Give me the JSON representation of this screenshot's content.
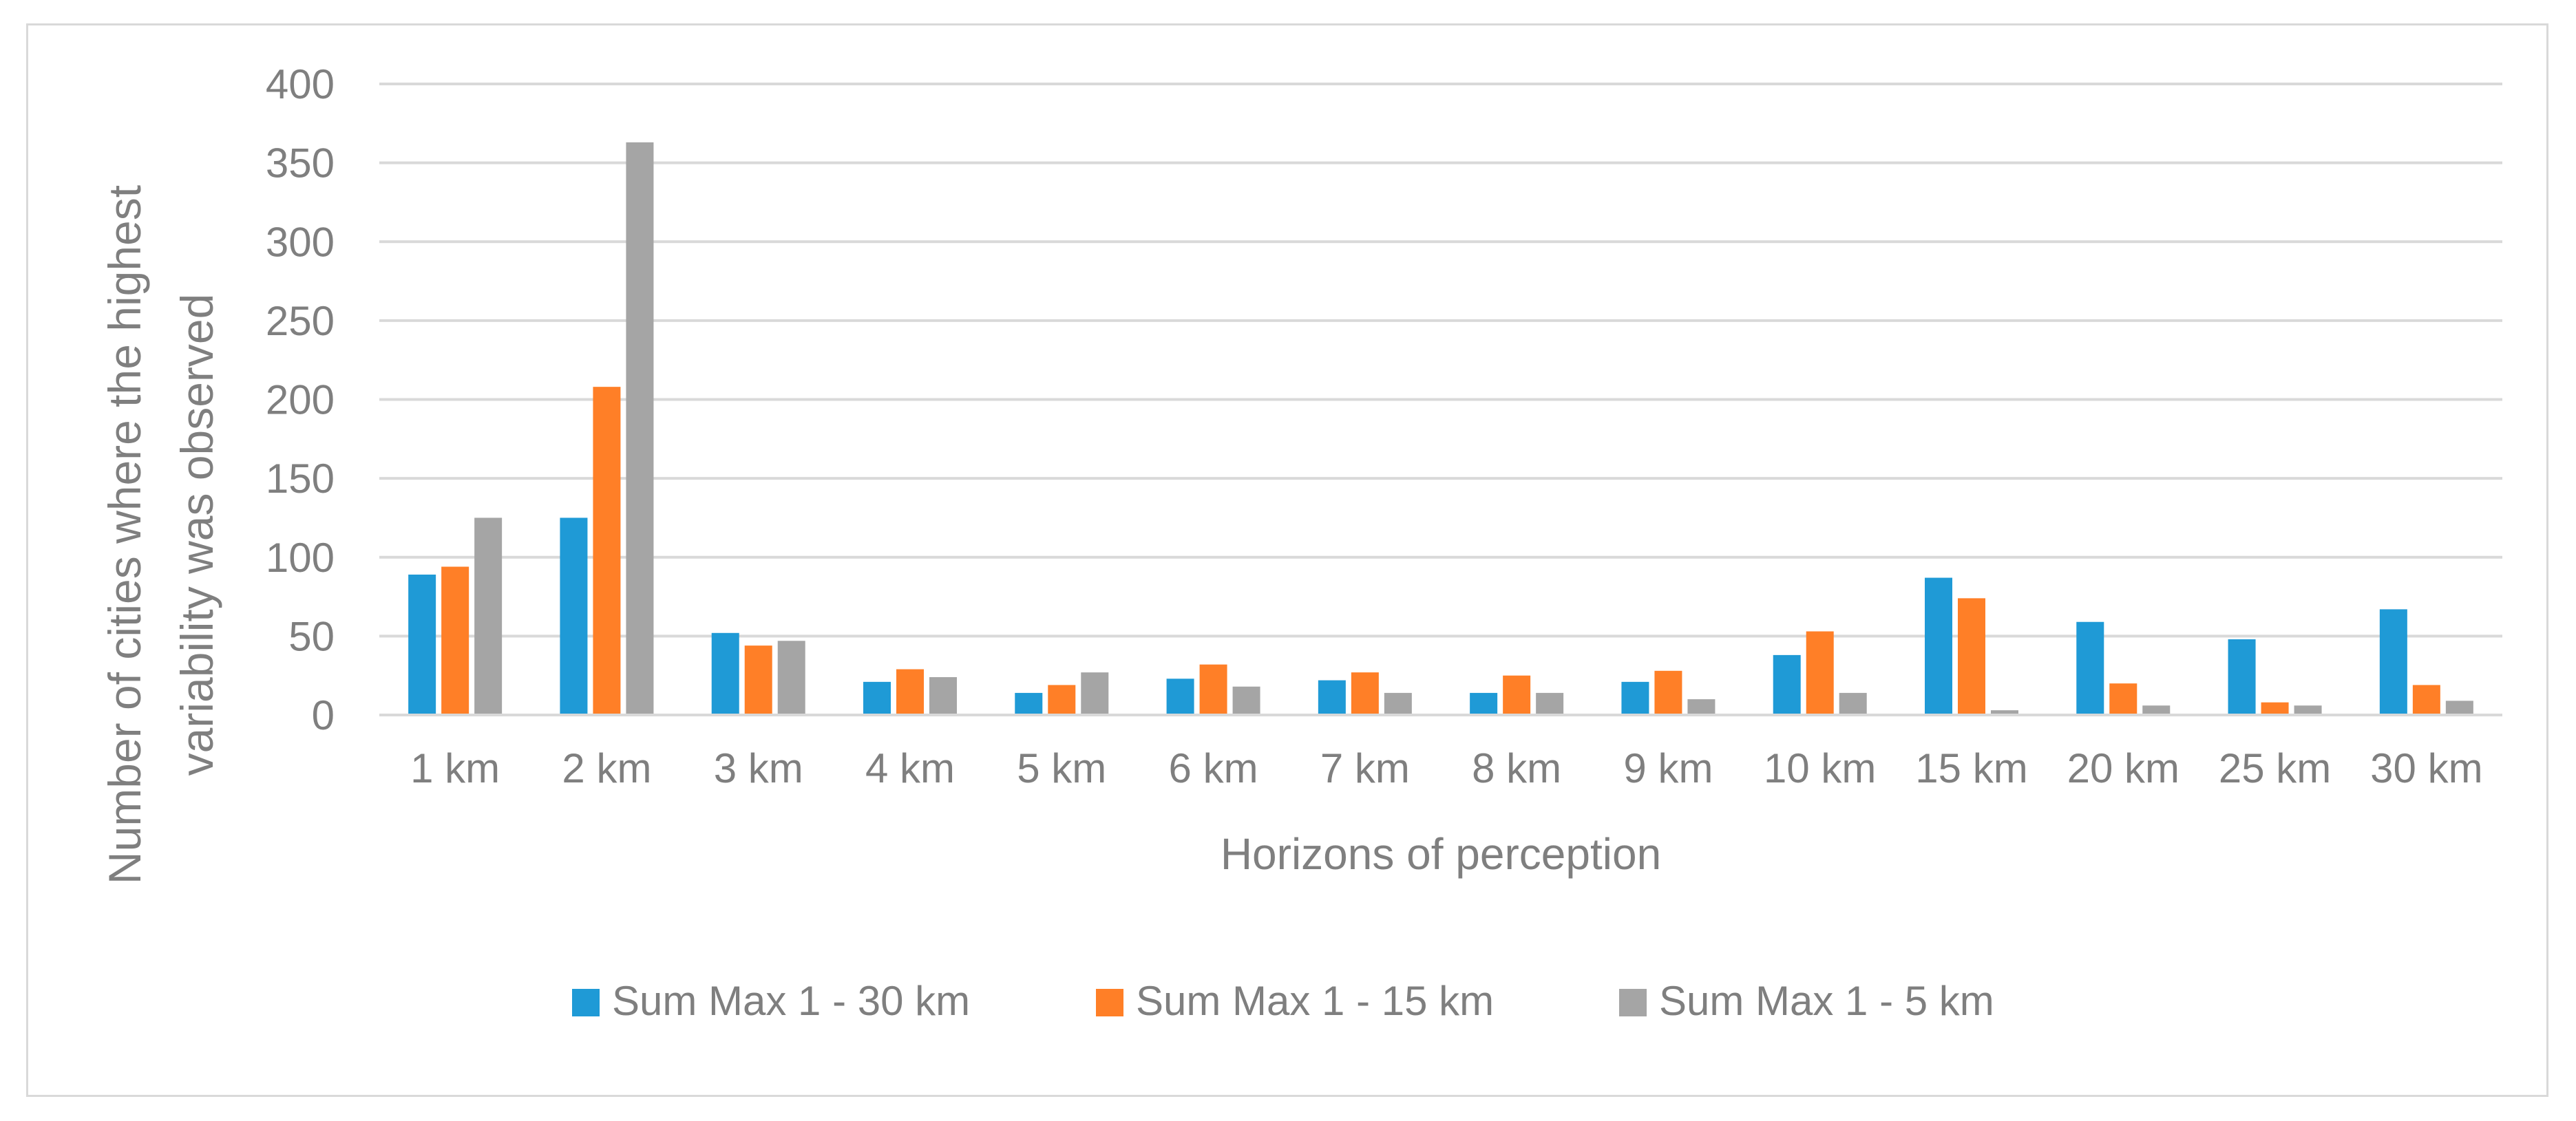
{
  "chart_data": {
    "type": "bar",
    "title": "",
    "xlabel": "Horizons of perception",
    "ylabel": "Number of cities where the highest variability was observed",
    "ylabel_lines": [
      "Number of cities where the highest",
      "variability was observed"
    ],
    "ylim": [
      0,
      400
    ],
    "yticks": [
      0,
      50,
      100,
      150,
      200,
      250,
      300,
      350,
      400
    ],
    "grid": true,
    "legend_position": "bottom",
    "categories": [
      "1 km",
      "2 km",
      "3 km",
      "4 km",
      "5 km",
      "6 km",
      "7 km",
      "8 km",
      "9 km",
      "10 km",
      "15 km",
      "20 km",
      "25 km",
      "30 km"
    ],
    "series": [
      {
        "name": "Sum Max 1 - 30 km",
        "color": "#1f9ad6",
        "values": [
          89,
          125,
          52,
          21,
          14,
          23,
          22,
          14,
          21,
          38,
          87,
          59,
          48,
          67
        ]
      },
      {
        "name": "Sum Max 1 - 15 km",
        "color": "#ff7f27",
        "values": [
          94,
          208,
          44,
          29,
          19,
          32,
          27,
          25,
          28,
          53,
          74,
          20,
          8,
          19
        ]
      },
      {
        "name": "Sum Max 1 - 5 km",
        "color": "#a5a5a5",
        "values": [
          125,
          363,
          47,
          24,
          27,
          18,
          14,
          14,
          10,
          14,
          3,
          6,
          6,
          9
        ]
      }
    ]
  }
}
